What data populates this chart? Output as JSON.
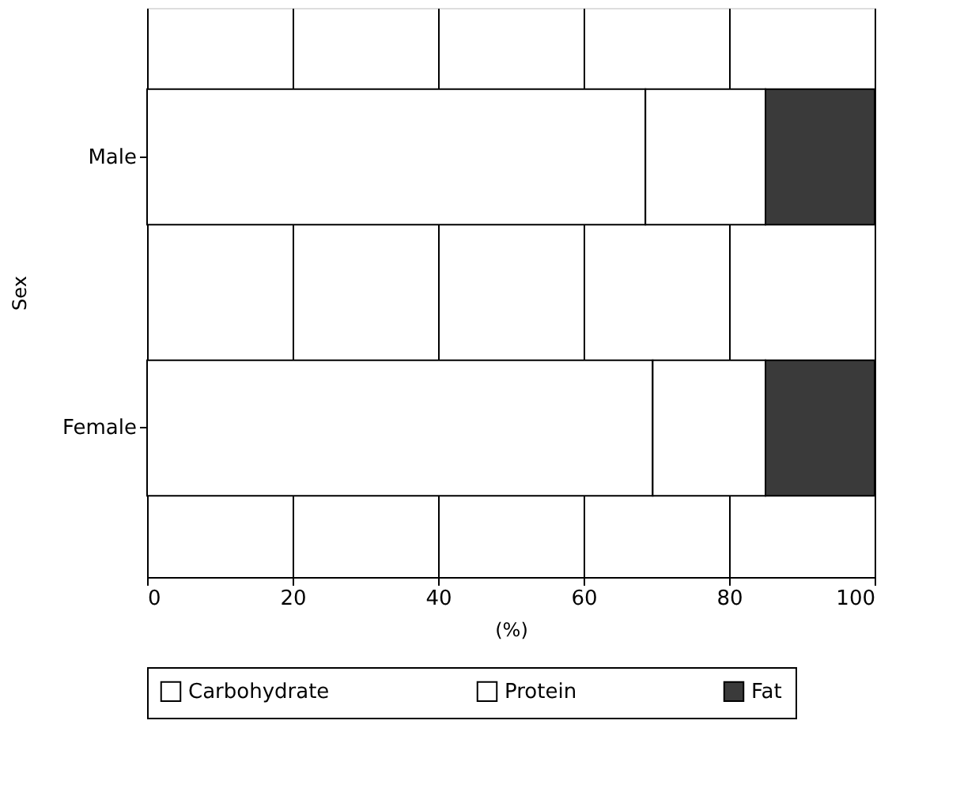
{
  "chart_data": {
    "type": "bar",
    "orientation": "horizontal",
    "stacked": true,
    "ylabel": "Sex",
    "xlabel": "(%)",
    "categories": [
      "Male",
      "Female"
    ],
    "series": [
      {
        "name": "Carbohydrate",
        "color": "#ffffff",
        "values": [
          68.5,
          69.5
        ]
      },
      {
        "name": "Protein",
        "color": "#ffffff",
        "values": [
          16.5,
          15.5
        ]
      },
      {
        "name": "Fat",
        "color": "#3a3a3a",
        "values": [
          15,
          15
        ]
      }
    ],
    "xlim": [
      0,
      100
    ],
    "xticks": [
      0,
      20,
      40,
      60,
      80,
      100
    ],
    "grid": "x",
    "legend": "bottom"
  }
}
